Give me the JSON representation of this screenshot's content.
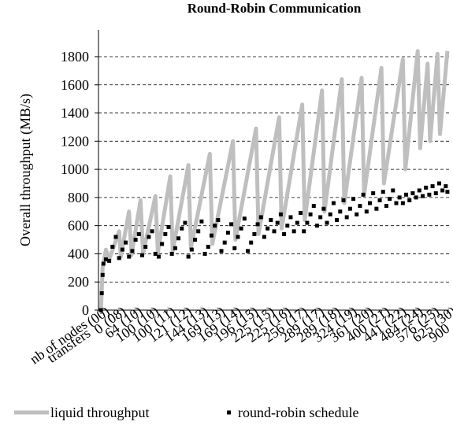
{
  "chart_data": {
    "type": "line",
    "title": "Round-Robin Communication",
    "y_label": "Overall throughput (MB/s)",
    "ylim": [
      0,
      1990
    ],
    "yticks": [
      0,
      200,
      400,
      600,
      800,
      1000,
      1200,
      1400,
      1600,
      1800
    ],
    "grid": true,
    "xlim": [
      -0.15,
      21.1
    ],
    "xticks": [
      0,
      1,
      2,
      3,
      4,
      5,
      6,
      7,
      8,
      9,
      10,
      11,
      12,
      13,
      14,
      15,
      16,
      17,
      18,
      19,
      20,
      21
    ],
    "x_label_rows": [
      {
        "name": "nb of nodes",
        "labels": [
          "(00)",
          "(08)",
          "(10)",
          "(10)",
          "(11)",
          "(12)",
          "(13)",
          "(13)",
          "(14)",
          "(15)",
          "(15)",
          "(16)",
          "(17)",
          "(17)",
          "(18)",
          "(19)",
          "(20)",
          "(21)",
          "(22)",
          "(24)",
          "(25)",
          "(30)"
        ]
      },
      {
        "name": "transfers",
        "labels": [
          "0",
          "64",
          "100",
          "100",
          "121",
          "144",
          "169",
          "169",
          "196",
          "225",
          "225",
          "256",
          "289",
          "289",
          "324",
          "361",
          "400",
          "441",
          "484",
          "576",
          "625",
          "900"
        ]
      }
    ],
    "legend": "bottom",
    "series": [
      {
        "name": "liquid throughput",
        "color": "#bfbfbf",
        "style": "line",
        "x": [
          0,
          0.1,
          0.3,
          0.5,
          1.1,
          1.2,
          1.7,
          1.85,
          2.4,
          2.55,
          3.3,
          3.45,
          4.2,
          4.35,
          5.3,
          5.45,
          6.6,
          6.75,
          8.0,
          8.15,
          9.4,
          9.55,
          10.8,
          10.95,
          12.2,
          12.35,
          13.4,
          13.55,
          14.6,
          14.75,
          15.8,
          15.95,
          17.0,
          17.15,
          18.3,
          18.45,
          19.2,
          19.35,
          19.8,
          19.95,
          20.4,
          20.55,
          21.0
        ],
        "values": [
          0,
          300,
          430,
          360,
          560,
          380,
          700,
          390,
          780,
          400,
          810,
          410,
          950,
          420,
          1030,
          440,
          1110,
          470,
          1200,
          500,
          1290,
          540,
          1370,
          580,
          1460,
          640,
          1560,
          700,
          1640,
          760,
          1650,
          820,
          1720,
          900,
          1780,
          1000,
          1840,
          1150,
          1750,
          1200,
          1820,
          1250,
          1840
        ]
      },
      {
        "name": "round-robin schedule",
        "color": "#000000",
        "style": "markers",
        "x": [
          0,
          0.05,
          0.1,
          0.15,
          0.3,
          0.5,
          0.7,
          0.9,
          1.1,
          1.3,
          1.5,
          1.7,
          1.9,
          2.1,
          2.3,
          2.5,
          2.7,
          2.9,
          3.1,
          3.3,
          3.5,
          3.7,
          3.9,
          4.1,
          4.3,
          4.5,
          4.7,
          4.9,
          5.1,
          5.3,
          5.5,
          5.7,
          5.9,
          6.1,
          6.3,
          6.5,
          6.7,
          6.9,
          7.1,
          7.3,
          7.5,
          7.7,
          7.9,
          8.1,
          8.3,
          8.5,
          8.7,
          8.9,
          9.1,
          9.3,
          9.5,
          9.7,
          9.9,
          10.1,
          10.3,
          10.5,
          10.7,
          10.9,
          11.1,
          11.3,
          11.5,
          11.7,
          11.9,
          12.1,
          12.3,
          12.5,
          12.7,
          12.9,
          13.1,
          13.3,
          13.5,
          13.7,
          13.9,
          14.1,
          14.3,
          14.5,
          14.7,
          14.9,
          15.1,
          15.3,
          15.5,
          15.7,
          15.9,
          16.1,
          16.3,
          16.5,
          16.7,
          16.9,
          17.1,
          17.3,
          17.5,
          17.7,
          17.9,
          18.1,
          18.3,
          18.5,
          18.7,
          18.9,
          19.1,
          19.3,
          19.5,
          19.7,
          19.9,
          20.1,
          20.3,
          20.5,
          20.7,
          20.9,
          21.0
        ],
        "values": [
          0,
          120,
          250,
          330,
          360,
          350,
          450,
          520,
          370,
          430,
          480,
          380,
          420,
          500,
          540,
          390,
          450,
          520,
          560,
          400,
          380,
          470,
          540,
          590,
          400,
          440,
          510,
          580,
          620,
          380,
          430,
          500,
          560,
          630,
          400,
          450,
          530,
          600,
          640,
          420,
          480,
          550,
          610,
          440,
          520,
          580,
          650,
          420,
          480,
          540,
          610,
          660,
          520,
          580,
          640,
          560,
          620,
          680,
          540,
          600,
          660,
          560,
          620,
          690,
          560,
          620,
          680,
          740,
          600,
          660,
          720,
          620,
          680,
          760,
          640,
          700,
          780,
          660,
          720,
          790,
          680,
          740,
          820,
          700,
          760,
          830,
          720,
          780,
          840,
          740,
          790,
          850,
          760,
          800,
          760,
          820,
          780,
          830,
          800,
          850,
          810,
          870,
          820,
          880,
          830,
          900,
          850,
          880,
          840
        ]
      }
    ]
  }
}
